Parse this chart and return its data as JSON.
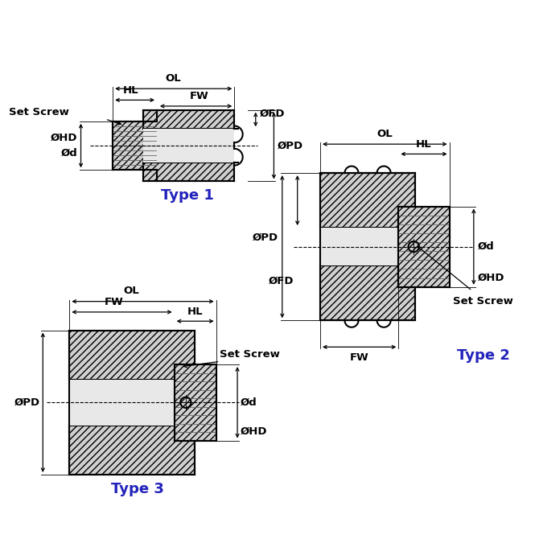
{
  "bg_color": "#ffffff",
  "lc": "#000000",
  "type_color": "#2222bb",
  "hatch_fc": "#d0d0d0",
  "bore_fc": "#e8e8e8",
  "dim_fs": 9.5,
  "type_fs": 13,
  "lw": 1.5,
  "lw_dim": 0.9,
  "lw_thin": 0.6,
  "figsize": [
    6.7,
    6.7
  ],
  "dpi": 100,
  "type1_label": "Type 1",
  "type2_label": "Type 2",
  "type3_label": "Type 3"
}
